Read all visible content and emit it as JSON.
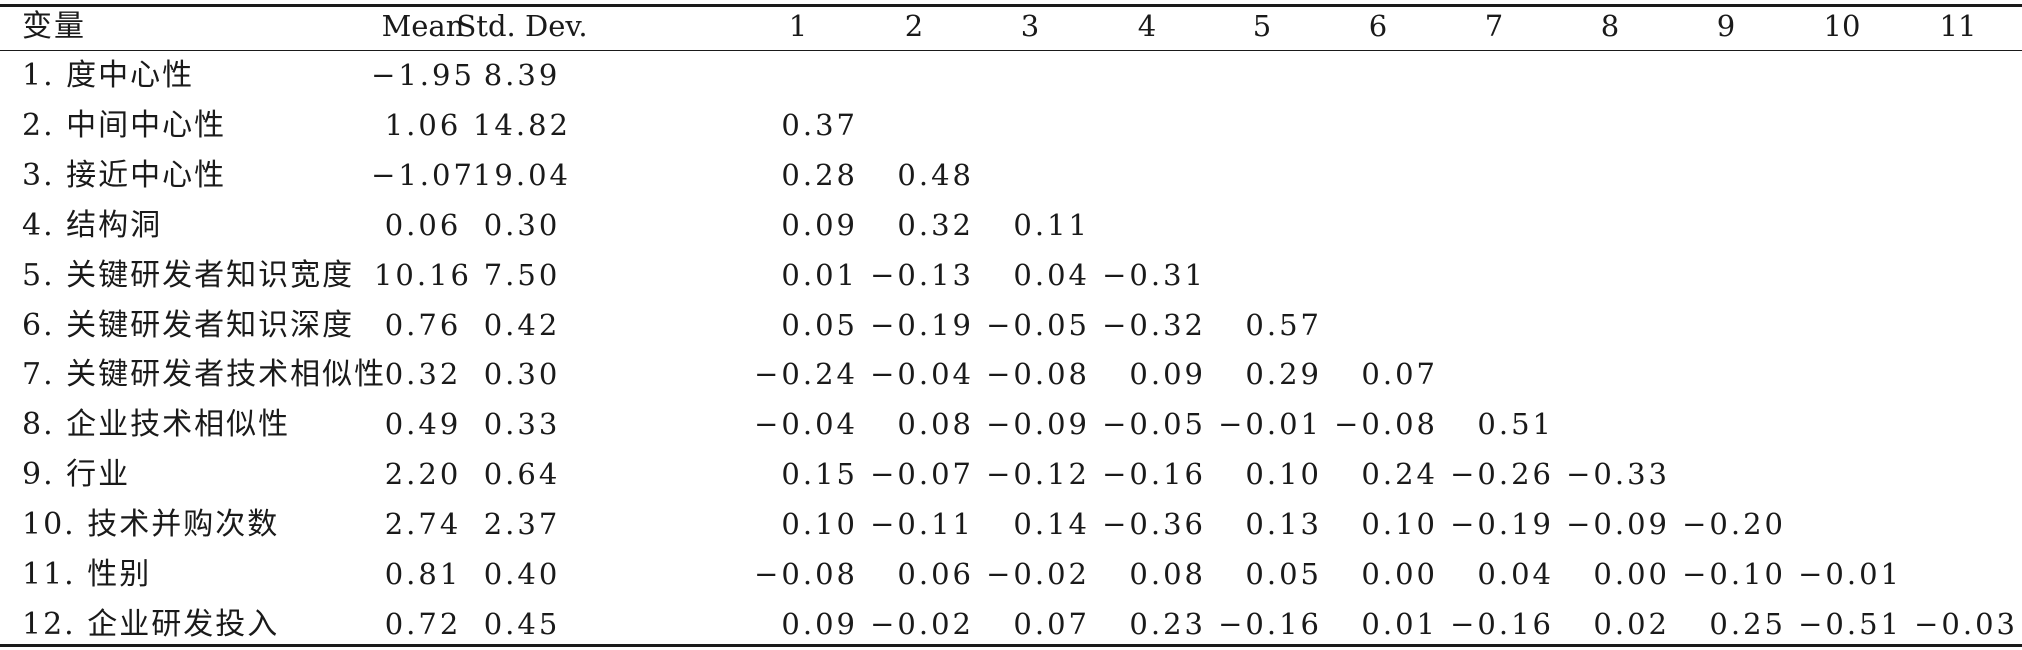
{
  "chart_data": {
    "type": "table",
    "columns": [
      "变量",
      "Mean",
      "Std. Dev.",
      "1",
      "2",
      "3",
      "4",
      "5",
      "6",
      "7",
      "8",
      "9",
      "10",
      "11"
    ],
    "rows": [
      {
        "label": "1. 度中心性",
        "mean": "−1.95",
        "sd": "8.39",
        "corr": []
      },
      {
        "label": "2. 中间中心性",
        "mean": "1.06",
        "sd": "14.82",
        "corr": [
          "0.37"
        ]
      },
      {
        "label": "3. 接近中心性",
        "mean": "−1.07",
        "sd": "19.04",
        "corr": [
          "0.28",
          "0.48"
        ]
      },
      {
        "label": "4. 结构洞",
        "mean": "0.06",
        "sd": "0.30",
        "corr": [
          "0.09",
          "0.32",
          "0.11"
        ]
      },
      {
        "label": "5. 关键研发者知识宽度",
        "mean": "10.16",
        "sd": "7.50",
        "corr": [
          "0.01",
          "−0.13",
          "0.04",
          "−0.31"
        ]
      },
      {
        "label": "6. 关键研发者知识深度",
        "mean": "0.76",
        "sd": "0.42",
        "corr": [
          "0.05",
          "−0.19",
          "−0.05",
          "−0.32",
          "0.57"
        ]
      },
      {
        "label": "7. 关键研发者技术相似性",
        "mean": "0.32",
        "sd": "0.30",
        "corr": [
          "−0.24",
          "−0.04",
          "−0.08",
          "0.09",
          "0.29",
          "0.07"
        ]
      },
      {
        "label": "8. 企业技术相似性",
        "mean": "0.49",
        "sd": "0.33",
        "corr": [
          "−0.04",
          "0.08",
          "−0.09",
          "−0.05",
          "−0.01",
          "−0.08",
          "0.51"
        ]
      },
      {
        "label": "9. 行业",
        "mean": "2.20",
        "sd": "0.64",
        "corr": [
          "0.15",
          "−0.07",
          "−0.12",
          "−0.16",
          "0.10",
          "0.24",
          "−0.26",
          "−0.33"
        ]
      },
      {
        "label": "10. 技术并购次数",
        "mean": "2.74",
        "sd": "2.37",
        "corr": [
          "0.10",
          "−0.11",
          "0.14",
          "−0.36",
          "0.13",
          "0.10",
          "−0.19",
          "−0.09",
          "−0.20"
        ]
      },
      {
        "label": "11. 性别",
        "mean": "0.81",
        "sd": "0.40",
        "corr": [
          "−0.08",
          "0.06",
          "−0.02",
          "0.08",
          "0.05",
          "0.00",
          "0.04",
          "0.00",
          "−0.10",
          "−0.01"
        ]
      },
      {
        "label": "12. 企业研发投入",
        "mean": "0.72",
        "sd": "0.45",
        "corr": [
          "0.09",
          "−0.02",
          "0.07",
          "0.23",
          "−0.16",
          "0.01",
          "−0.16",
          "0.02",
          "0.25",
          "−0.51",
          "−0.03"
        ]
      }
    ]
  }
}
